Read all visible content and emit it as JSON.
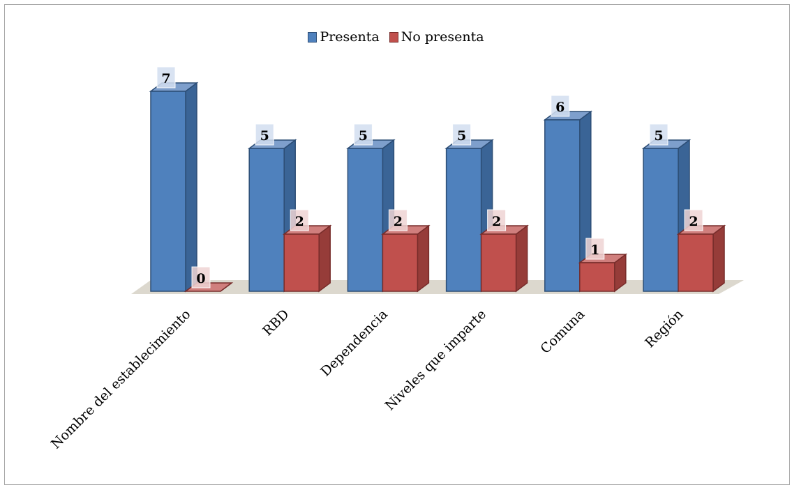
{
  "chart_data": {
    "type": "bar",
    "title": "",
    "xlabel": "",
    "ylabel": "",
    "categories": [
      "Nombre del establecimiento",
      "RBD",
      "Dependencia",
      "Niveles que imparte",
      "Comuna",
      "Región"
    ],
    "series": [
      {
        "name": "Presenta",
        "values": [
          7,
          5,
          5,
          5,
          6,
          5
        ],
        "color": "#4f81bd"
      },
      {
        "name": "No presenta",
        "values": [
          0,
          2,
          2,
          2,
          1,
          2
        ],
        "color": "#c0504d"
      }
    ],
    "ylim": [
      0,
      7
    ],
    "grid": false,
    "legend_position": "top-center",
    "data_labels": true,
    "style": "3d-clustered-column"
  }
}
